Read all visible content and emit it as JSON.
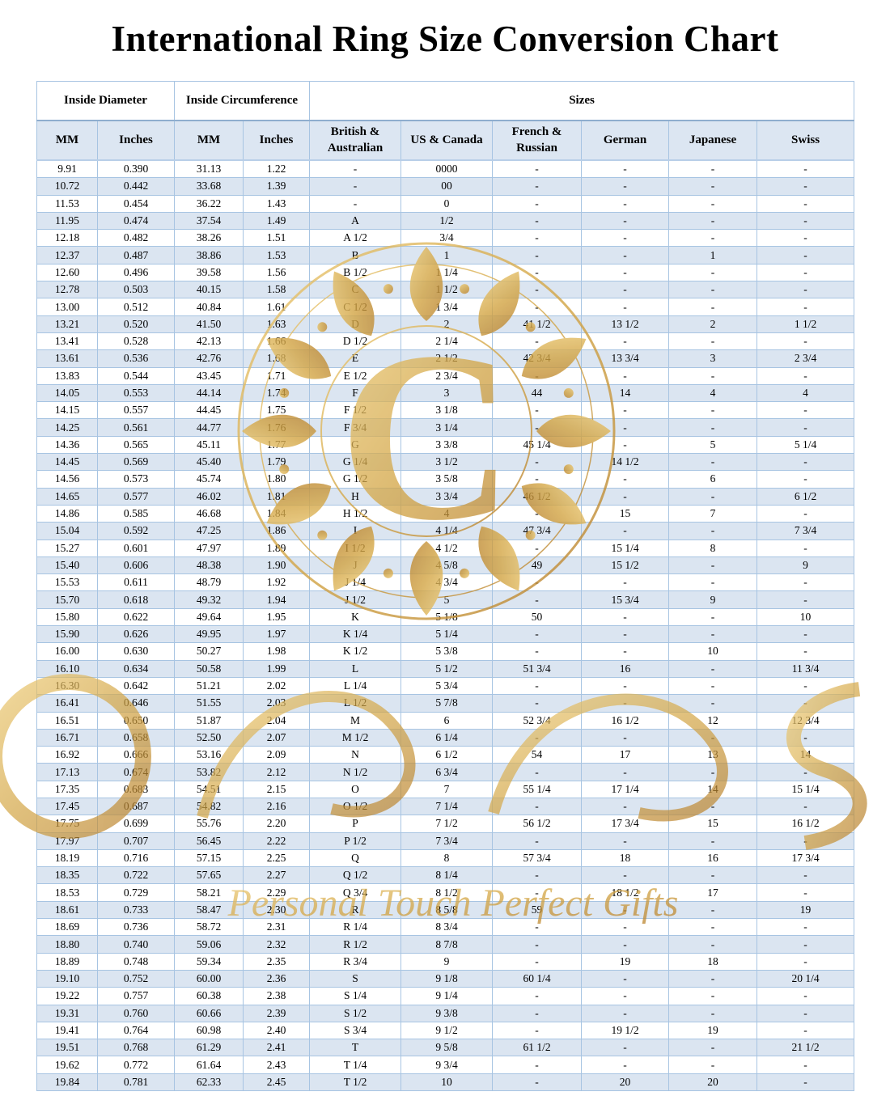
{
  "page": {
    "title": "International Ring Size Conversion Chart"
  },
  "table": {
    "group_headers": [
      {
        "label": "Inside Diameter"
      },
      {
        "label": "Inside Circumference"
      },
      {
        "label": "Sizes"
      }
    ],
    "column_headers": [
      "MM",
      "Inches",
      "MM",
      "Inches",
      "British & Australian",
      "US & Canada",
      "French & Russian",
      "German",
      "Japanese",
      "Swiss"
    ],
    "rows": [
      [
        "9.91",
        "0.390",
        "31.13",
        "1.22",
        "-",
        "0000",
        "-",
        "-",
        "-",
        "-"
      ],
      [
        "10.72",
        "0.442",
        "33.68",
        "1.39",
        "-",
        "00",
        "-",
        "-",
        "-",
        "-"
      ],
      [
        "11.53",
        "0.454",
        "36.22",
        "1.43",
        "-",
        "0",
        "-",
        "-",
        "-",
        "-"
      ],
      [
        "11.95",
        "0.474",
        "37.54",
        "1.49",
        "A",
        "1/2",
        "-",
        "-",
        "-",
        "-"
      ],
      [
        "12.18",
        "0.482",
        "38.26",
        "1.51",
        "A 1/2",
        "3/4",
        "-",
        "-",
        "-",
        "-"
      ],
      [
        "12.37",
        "0.487",
        "38.86",
        "1.53",
        "B",
        "1",
        "-",
        "-",
        "1",
        "-"
      ],
      [
        "12.60",
        "0.496",
        "39.58",
        "1.56",
        "B 1/2",
        "1 1/4",
        "-",
        "-",
        "-",
        "-"
      ],
      [
        "12.78",
        "0.503",
        "40.15",
        "1.58",
        "C",
        "1 1/2",
        "-",
        "-",
        "-",
        "-"
      ],
      [
        "13.00",
        "0.512",
        "40.84",
        "1.61",
        "C 1/2",
        "1 3/4",
        "-",
        "-",
        "-",
        "-"
      ],
      [
        "13.21",
        "0.520",
        "41.50",
        "1.63",
        "D",
        "2",
        "41 1/2",
        "13 1/2",
        "2",
        "1 1/2"
      ],
      [
        "13.41",
        "0.528",
        "42.13",
        "1.66",
        "D 1/2",
        "2 1/4",
        "-",
        "-",
        "-",
        "-"
      ],
      [
        "13.61",
        "0.536",
        "42.76",
        "1.68",
        "E",
        "2 1/2",
        "42 3/4",
        "13 3/4",
        "3",
        "2 3/4"
      ],
      [
        "13.83",
        "0.544",
        "43.45",
        "1.71",
        "E 1/2",
        "2 3/4",
        "-",
        "-",
        "-",
        "-"
      ],
      [
        "14.05",
        "0.553",
        "44.14",
        "1.74",
        "F",
        "3",
        "44",
        "14",
        "4",
        "4"
      ],
      [
        "14.15",
        "0.557",
        "44.45",
        "1.75",
        "F 1/2",
        "3 1/8",
        "-",
        "-",
        "-",
        "-"
      ],
      [
        "14.25",
        "0.561",
        "44.77",
        "1.76",
        "F 3/4",
        "3 1/4",
        "-",
        "-",
        "-",
        "-"
      ],
      [
        "14.36",
        "0.565",
        "45.11",
        "1.77",
        "G",
        "3 3/8",
        "45 1/4",
        "-",
        "5",
        "5 1/4"
      ],
      [
        "14.45",
        "0.569",
        "45.40",
        "1.79",
        "G 1/4",
        "3 1/2",
        "-",
        "14 1/2",
        "-",
        "-"
      ],
      [
        "14.56",
        "0.573",
        "45.74",
        "1.80",
        "G 1/2",
        "3 5/8",
        "-",
        "-",
        "6",
        "-"
      ],
      [
        "14.65",
        "0.577",
        "46.02",
        "1.81",
        "H",
        "3 3/4",
        "46 1/2",
        "-",
        "-",
        "6 1/2"
      ],
      [
        "14.86",
        "0.585",
        "46.68",
        "1.84",
        "H 1/2",
        "4",
        "-",
        "15",
        "7",
        "-"
      ],
      [
        "15.04",
        "0.592",
        "47.25",
        "1.86",
        "I",
        "4 1/4",
        "47 3/4",
        "-",
        "-",
        "7 3/4"
      ],
      [
        "15.27",
        "0.601",
        "47.97",
        "1.89",
        "I 1/2",
        "4 1/2",
        "-",
        "15 1/4",
        "8",
        "-"
      ],
      [
        "15.40",
        "0.606",
        "48.38",
        "1.90",
        "J",
        "4 5/8",
        "49",
        "15 1/2",
        "-",
        "9"
      ],
      [
        "15.53",
        "0.611",
        "48.79",
        "1.92",
        "J 1/4",
        "4 3/4",
        "-",
        "-",
        "-",
        "-"
      ],
      [
        "15.70",
        "0.618",
        "49.32",
        "1.94",
        "J 1/2",
        "5",
        "-",
        "15 3/4",
        "9",
        "-"
      ],
      [
        "15.80",
        "0.622",
        "49.64",
        "1.95",
        "K",
        "5 1/8",
        "50",
        "-",
        "-",
        "10"
      ],
      [
        "15.90",
        "0.626",
        "49.95",
        "1.97",
        "K 1/4",
        "5 1/4",
        "-",
        "-",
        "-",
        "-"
      ],
      [
        "16.00",
        "0.630",
        "50.27",
        "1.98",
        "K 1/2",
        "5 3/8",
        "-",
        "-",
        "10",
        "-"
      ],
      [
        "16.10",
        "0.634",
        "50.58",
        "1.99",
        "L",
        "5 1/2",
        "51 3/4",
        "16",
        "-",
        "11 3/4"
      ],
      [
        "16.30",
        "0.642",
        "51.21",
        "2.02",
        "L 1/4",
        "5 3/4",
        "-",
        "-",
        "-",
        "-"
      ],
      [
        "16.41",
        "0.646",
        "51.55",
        "2.03",
        "L 1/2",
        "5 7/8",
        "-",
        "-",
        "-",
        "-"
      ],
      [
        "16.51",
        "0.650",
        "51.87",
        "2.04",
        "M",
        "6",
        "52 3/4",
        "16 1/2",
        "12",
        "12 3/4"
      ],
      [
        "16.71",
        "0.658",
        "52.50",
        "2.07",
        "M 1/2",
        "6 1/4",
        "-",
        "-",
        "-",
        "-"
      ],
      [
        "16.92",
        "0.666",
        "53.16",
        "2.09",
        "N",
        "6 1/2",
        "54",
        "17",
        "13",
        "14"
      ],
      [
        "17.13",
        "0.674",
        "53.82",
        "2.12",
        "N 1/2",
        "6 3/4",
        "-",
        "-",
        "-",
        "-"
      ],
      [
        "17.35",
        "0.683",
        "54.51",
        "2.15",
        "O",
        "7",
        "55 1/4",
        "17 1/4",
        "14",
        "15 1/4"
      ],
      [
        "17.45",
        "0.687",
        "54.82",
        "2.16",
        "O 1/2",
        "7 1/4",
        "-",
        "-",
        "-",
        "-"
      ],
      [
        "17.75",
        "0.699",
        "55.76",
        "2.20",
        "P",
        "7 1/2",
        "56 1/2",
        "17 3/4",
        "15",
        "16 1/2"
      ],
      [
        "17.97",
        "0.707",
        "56.45",
        "2.22",
        "P 1/2",
        "7 3/4",
        "-",
        "-",
        "-",
        "-"
      ],
      [
        "18.19",
        "0.716",
        "57.15",
        "2.25",
        "Q",
        "8",
        "57 3/4",
        "18",
        "16",
        "17 3/4"
      ],
      [
        "18.35",
        "0.722",
        "57.65",
        "2.27",
        "Q 1/2",
        "8 1/4",
        "-",
        "-",
        "-",
        "-"
      ],
      [
        "18.53",
        "0.729",
        "58.21",
        "2.29",
        "Q 3/4",
        "8 1/2",
        "-",
        "18 1/2",
        "17",
        "-"
      ],
      [
        "18.61",
        "0.733",
        "58.47",
        "2.30",
        "R",
        "8 5/8",
        "59",
        "-",
        "-",
        "19"
      ],
      [
        "18.69",
        "0.736",
        "58.72",
        "2.31",
        "R 1/4",
        "8 3/4",
        "-",
        "-",
        "-",
        "-"
      ],
      [
        "18.80",
        "0.740",
        "59.06",
        "2.32",
        "R 1/2",
        "8 7/8",
        "-",
        "-",
        "-",
        "-"
      ],
      [
        "18.89",
        "0.748",
        "59.34",
        "2.35",
        "R 3/4",
        "9",
        "-",
        "19",
        "18",
        "-"
      ],
      [
        "19.10",
        "0.752",
        "60.00",
        "2.36",
        "S",
        "9 1/8",
        "60 1/4",
        "-",
        "-",
        "20 1/4"
      ],
      [
        "19.22",
        "0.757",
        "60.38",
        "2.38",
        "S 1/4",
        "9 1/4",
        "-",
        "-",
        "-",
        "-"
      ],
      [
        "19.31",
        "0.760",
        "60.66",
        "2.39",
        "S 1/2",
        "9 3/8",
        "-",
        "-",
        "-",
        "-"
      ],
      [
        "19.41",
        "0.764",
        "60.98",
        "2.40",
        "S 3/4",
        "9 1/2",
        "-",
        "19 1/2",
        "19",
        "-"
      ],
      [
        "19.51",
        "0.768",
        "61.29",
        "2.41",
        "T",
        "9 5/8",
        "61 1/2",
        "-",
        "-",
        "21 1/2"
      ],
      [
        "19.62",
        "0.772",
        "61.64",
        "2.43",
        "T 1/4",
        "9 3/4",
        "-",
        "-",
        "-",
        "-"
      ],
      [
        "19.84",
        "0.781",
        "62.33",
        "2.45",
        "T 1/2",
        "10",
        "-",
        "20",
        "20",
        "-"
      ]
    ]
  },
  "watermark": {
    "monogram": "C",
    "text": "Personal Touch  Perfect Gifts",
    "gold_color": "#d3a544"
  },
  "colors": {
    "row_alt": "#dbe5f1",
    "header_bg": "#dce6f2",
    "border": "#a7c4e2",
    "text": "#000000"
  }
}
